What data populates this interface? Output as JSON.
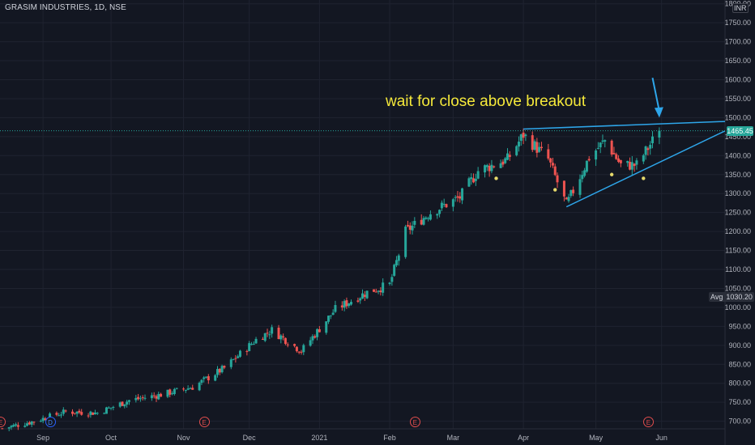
{
  "symbol": {
    "title": "GRASIM INDUSTRIES, 1D, NSE",
    "currency": "INR"
  },
  "annotation": {
    "text": "wait for close above breakout"
  },
  "price_label": {
    "value": "1465.45",
    "color": "#26a69a"
  },
  "avg_label": {
    "name": "Avg",
    "value": "1030.20"
  },
  "events": [
    {
      "label": "E",
      "date": "2020-08-13",
      "kind": "earnings"
    },
    {
      "label": "D",
      "date": "2020-09-04",
      "kind": "dividend"
    },
    {
      "label": "E",
      "date": "2020-11-11",
      "kind": "earnings"
    },
    {
      "label": "E",
      "date": "2021-02-12",
      "kind": "earnings"
    },
    {
      "label": "E",
      "date": "2021-05-26",
      "kind": "earnings"
    }
  ],
  "colors": {
    "background": "#131722",
    "up": "#26a69a",
    "down": "#ef5350",
    "trendline": "#2ea6ea",
    "annotation": "#f5e93a",
    "avg_line": "#2962ff"
  },
  "chart_data": {
    "type": "candlestick",
    "title": "GRASIM INDUSTRIES, 1D, NSE",
    "xlabel": "",
    "ylabel": "",
    "x_ticks": [
      "Sep",
      "Oct",
      "Nov",
      "Dec",
      "2021",
      "Feb",
      "Mar",
      "Apr",
      "May",
      "Jun"
    ],
    "y_ticks": [
      "700.00",
      "750.00",
      "800.00",
      "850.00",
      "900.00",
      "950.00",
      "1000.00",
      "1050.00",
      "1100.00",
      "1150.00",
      "1200.00",
      "1250.00",
      "1300.00",
      "1350.00",
      "1400.00",
      "1450.00",
      "1500.00",
      "1550.00",
      "1600.00",
      "1650.00",
      "1700.00",
      "1750.00",
      "1800.00"
    ],
    "ylim": [
      680,
      1810
    ],
    "xlim": [
      "2020-08-13",
      "2021-06-29"
    ],
    "grid": true,
    "last_price": 1465.45,
    "avg": 1030.2,
    "close_series": [
      [
        "2020-08-14",
        681
      ],
      [
        "2020-08-28",
        700
      ],
      [
        "2020-09-11",
        725
      ],
      [
        "2020-09-25",
        722
      ],
      [
        "2020-10-09",
        755
      ],
      [
        "2020-10-23",
        770
      ],
      [
        "2020-11-06",
        790
      ],
      [
        "2020-11-20",
        840
      ],
      [
        "2020-12-04",
        915
      ],
      [
        "2020-12-11",
        940
      ],
      [
        "2020-12-24",
        885
      ],
      [
        "2021-01-08",
        995
      ],
      [
        "2021-01-22",
        1040
      ],
      [
        "2021-02-01",
        1060
      ],
      [
        "2021-02-08",
        1200
      ],
      [
        "2021-02-19",
        1250
      ],
      [
        "2021-03-04",
        1290
      ],
      [
        "2021-03-12",
        1360
      ],
      [
        "2021-03-25",
        1390
      ],
      [
        "2021-04-01",
        1455
      ],
      [
        "2021-04-12",
        1390
      ],
      [
        "2021-04-20",
        1270
      ],
      [
        "2021-04-30",
        1395
      ],
      [
        "2021-05-07",
        1440
      ],
      [
        "2021-05-14",
        1375
      ],
      [
        "2021-05-21",
        1375
      ],
      [
        "2021-05-31",
        1465.45
      ]
    ],
    "swing_labels": [
      [
        "2021-03-20",
        1340
      ],
      [
        "2021-04-15",
        1310
      ],
      [
        "2021-05-10",
        1350
      ],
      [
        "2021-05-24",
        1340
      ]
    ],
    "trendlines": [
      {
        "name": "resistance",
        "from": [
          "2021-04-01",
          1470
        ],
        "to": [
          "2021-06-29",
          1490
        ]
      },
      {
        "name": "support",
        "from": [
          "2021-04-20",
          1265
        ],
        "to": [
          "2021-06-29",
          1465
        ]
      }
    ],
    "arrow": {
      "from": [
        "2021-05-28",
        1605
      ],
      "to": [
        "2021-05-31",
        1500
      ]
    }
  }
}
